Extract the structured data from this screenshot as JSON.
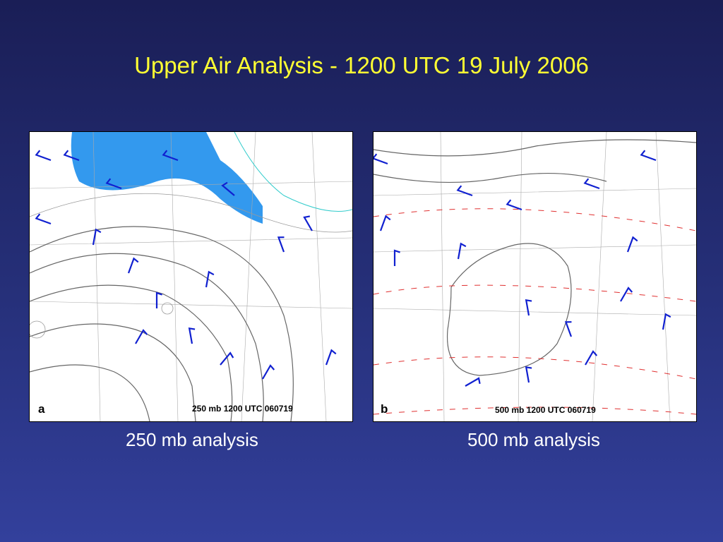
{
  "title": "Upper Air Analysis - 1200 UTC 19 July 2006",
  "panels": [
    {
      "letter": "a",
      "stamp": "250 mb 1200 UTC 060719",
      "caption": "250 mb analysis"
    },
    {
      "letter": "b",
      "stamp": "500 mb 1200 UTC 060719",
      "caption": "500 mb analysis"
    }
  ]
}
